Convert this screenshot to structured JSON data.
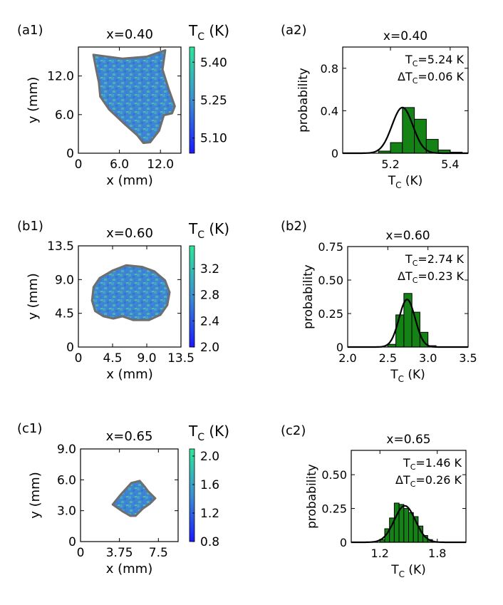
{
  "chart_data": [
    {
      "type": "heatmap",
      "panel_label": "(a1)",
      "title": "x=0.40",
      "xlabel": "x (mm)",
      "ylabel": "y (mm)",
      "x_ticks": [
        "0",
        "6.0",
        "12.0"
      ],
      "x_tick_values": [
        0,
        6,
        12
      ],
      "y_ticks": [
        "0",
        "6.0",
        "12.0"
      ],
      "y_tick_values": [
        0,
        6,
        12
      ],
      "xlim": [
        0,
        15
      ],
      "ylim": [
        0,
        16.5
      ],
      "colorbar": {
        "label_main": "T",
        "label_sub": "C",
        "label_unit": " (K)",
        "ticks": [
          "5.10",
          "5.25",
          "5.40"
        ],
        "tick_values": [
          5.1,
          5.25,
          5.4
        ],
        "range": [
          5.04,
          5.46
        ],
        "cmap_low": "#1a1aff",
        "cmap_mid": "#3c8fd2",
        "cmap_high": "#2ee69a"
      },
      "sample_outline_mm": [
        [
          2.2,
          15.3
        ],
        [
          6.5,
          14.7
        ],
        [
          10,
          15.0
        ],
        [
          12.7,
          16.0
        ],
        [
          12.3,
          13.0
        ],
        [
          13.2,
          10.0
        ],
        [
          14.1,
          7.3
        ],
        [
          13.7,
          6.2
        ],
        [
          12.5,
          5.9
        ],
        [
          11.8,
          3.5
        ],
        [
          10.5,
          1.7
        ],
        [
          9.5,
          1.6
        ],
        [
          8.6,
          2.8
        ],
        [
          6.5,
          4.8
        ],
        [
          4.5,
          6.8
        ],
        [
          3.2,
          8.8
        ],
        [
          3.0,
          11.0
        ],
        [
          2.6,
          13.0
        ]
      ]
    },
    {
      "type": "bar",
      "panel_label": "(a2)",
      "title": "x=0.40",
      "xlabel_main": "T",
      "xlabel_sub": "C",
      "xlabel_unit": " (K)",
      "ylabel": "probability",
      "x_ticks": [
        "5.2",
        "5.4"
      ],
      "x_tick_values": [
        5.2,
        5.4
      ],
      "y_ticks": [
        "0",
        "0.4",
        "0.8"
      ],
      "y_tick_values": [
        0,
        0.4,
        0.8
      ],
      "xlim": [
        5.04,
        5.46
      ],
      "ylim": [
        0,
        1.0
      ],
      "bar_color": "#148214",
      "bins": [
        [
          5.16,
          5.2,
          0.02
        ],
        [
          5.2,
          5.24,
          0.1
        ],
        [
          5.24,
          5.28,
          0.43
        ],
        [
          5.28,
          5.32,
          0.32
        ],
        [
          5.32,
          5.36,
          0.13
        ],
        [
          5.36,
          5.4,
          0.03
        ],
        [
          5.4,
          5.44,
          0.01
        ]
      ],
      "fit": {
        "mean": 5.24,
        "sigma": 0.035,
        "peak": 0.43
      },
      "annotation_tc": {
        "prefix": "T",
        "sub": "C",
        "text": "=5.24 K"
      },
      "annotation_dtc": {
        "prefix": "ΔT",
        "sub": "C",
        "text": "=0.06 K"
      }
    },
    {
      "type": "heatmap",
      "panel_label": "(b1)",
      "title": "x=0.60",
      "xlabel": "x (mm)",
      "ylabel": "y (mm)",
      "x_ticks": [
        "0",
        "4.5",
        "9.0",
        "13.5"
      ],
      "x_tick_values": [
        0,
        4.5,
        9,
        13.5
      ],
      "y_ticks": [
        "0",
        "4.5",
        "9.0",
        "13.5"
      ],
      "y_tick_values": [
        0,
        4.5,
        9,
        13.5
      ],
      "xlim": [
        0,
        13.5
      ],
      "ylim": [
        0,
        13.5
      ],
      "colorbar": {
        "label_main": "T",
        "label_sub": "C",
        "label_unit": " (K)",
        "ticks": [
          "2.0",
          "2.4",
          "2.8",
          "3.2"
        ],
        "tick_values": [
          2.0,
          2.4,
          2.8,
          3.2
        ],
        "range": [
          2.0,
          3.55
        ],
        "cmap_low": "#1a1aff",
        "cmap_mid": "#3c8fd2",
        "cmap_high": "#2ee69a"
      },
      "sample_outline_mm": [
        [
          1.8,
          6.2
        ],
        [
          2.0,
          8.0
        ],
        [
          2.8,
          9.2
        ],
        [
          4.5,
          10.2
        ],
        [
          6.3,
          10.9
        ],
        [
          8.4,
          10.7
        ],
        [
          10.0,
          10.1
        ],
        [
          11.4,
          8.9
        ],
        [
          12.0,
          7.3
        ],
        [
          11.7,
          5.6
        ],
        [
          10.8,
          4.3
        ],
        [
          9.3,
          3.6
        ],
        [
          7.2,
          3.6
        ],
        [
          5.8,
          4.1
        ],
        [
          4.6,
          3.8
        ],
        [
          3.3,
          4.1
        ],
        [
          2.2,
          4.8
        ]
      ]
    },
    {
      "type": "bar",
      "panel_label": "(b2)",
      "title": "x=0.60",
      "xlabel_main": "T",
      "xlabel_sub": "C",
      "xlabel_unit": " (K)",
      "ylabel": "probability",
      "x_ticks": [
        "2.0",
        "2.5",
        "3.0",
        "3.5"
      ],
      "x_tick_values": [
        2.0,
        2.5,
        3.0,
        3.5
      ],
      "y_ticks": [
        "0",
        "0.25",
        "0.50",
        "0.75"
      ],
      "y_tick_values": [
        0,
        0.25,
        0.5,
        0.75
      ],
      "xlim": [
        2.0,
        3.5
      ],
      "ylim": [
        0,
        0.75
      ],
      "bar_color": "#148214",
      "bins": [
        [
          2.5,
          2.6,
          0.02
        ],
        [
          2.6,
          2.7,
          0.24
        ],
        [
          2.7,
          2.8,
          0.4
        ],
        [
          2.8,
          2.9,
          0.26
        ],
        [
          2.9,
          3.0,
          0.11
        ],
        [
          3.0,
          3.1,
          0.01
        ]
      ],
      "fit": {
        "mean": 2.74,
        "sigma": 0.1,
        "peak": 0.355
      },
      "annotation_tc": {
        "prefix": "T",
        "sub": "C",
        "text": "=2.74 K"
      },
      "annotation_dtc": {
        "prefix": "ΔT",
        "sub": "C",
        "text": "=0.23 K"
      }
    },
    {
      "type": "heatmap",
      "panel_label": "(c1)",
      "title": "x=0.65",
      "xlabel": "x (mm)",
      "ylabel": "y (mm)",
      "x_ticks": [
        "0",
        "3.75",
        "7.5"
      ],
      "x_tick_values": [
        0,
        3.75,
        7.5
      ],
      "y_ticks": [
        "0",
        "3.0",
        "6.0",
        "9.0"
      ],
      "y_tick_values": [
        0,
        3,
        6,
        9
      ],
      "xlim": [
        0,
        9.4
      ],
      "ylim": [
        0,
        9.0
      ],
      "colorbar": {
        "label_main": "T",
        "label_sub": "C",
        "label_unit": " (K)",
        "ticks": [
          "0.8",
          "1.2",
          "1.6",
          "2.0"
        ],
        "tick_values": [
          0.8,
          1.2,
          1.6,
          2.0
        ],
        "range": [
          0.8,
          2.1
        ],
        "cmap_low": "#1a1aff",
        "cmap_mid": "#3c8fd2",
        "cmap_high": "#2ee69a"
      },
      "sample_outline_mm": [
        [
          3.1,
          3.6
        ],
        [
          3.9,
          4.6
        ],
        [
          4.9,
          5.7
        ],
        [
          5.7,
          5.9
        ],
        [
          6.2,
          5.3
        ],
        [
          6.5,
          4.9
        ],
        [
          7.2,
          4.2
        ],
        [
          6.7,
          3.7
        ],
        [
          6.0,
          3.2
        ],
        [
          5.3,
          2.5
        ],
        [
          4.8,
          2.5
        ],
        [
          4.1,
          2.9
        ]
      ]
    },
    {
      "type": "bar",
      "panel_label": "(c2)",
      "title": "x=0.65",
      "xlabel_main": "T",
      "xlabel_sub": "C",
      "xlabel_unit": " (K)",
      "ylabel": "probability",
      "x_ticks": [
        "1.2",
        "1.8"
      ],
      "x_tick_values": [
        1.2,
        1.8
      ],
      "y_ticks": [
        "0",
        "0.25",
        "0.50"
      ],
      "y_tick_values": [
        0,
        0.25,
        0.5
      ],
      "xlim": [
        0.9,
        2.1
      ],
      "ylim": [
        0,
        0.68
      ],
      "bar_color": "#148214",
      "bins": [
        [
          1.2,
          1.25,
          0.02
        ],
        [
          1.25,
          1.3,
          0.1
        ],
        [
          1.3,
          1.35,
          0.18
        ],
        [
          1.35,
          1.4,
          0.29
        ],
        [
          1.4,
          1.45,
          0.28
        ],
        [
          1.45,
          1.5,
          0.25
        ],
        [
          1.5,
          1.55,
          0.22
        ],
        [
          1.55,
          1.6,
          0.19
        ],
        [
          1.6,
          1.65,
          0.12
        ],
        [
          1.65,
          1.7,
          0.05
        ],
        [
          1.7,
          1.75,
          0.02
        ]
      ],
      "fit": {
        "mean": 1.46,
        "sigma": 0.11,
        "peak": 0.27
      },
      "annotation_tc": {
        "prefix": "T",
        "sub": "C",
        "text": "=1.46 K"
      },
      "annotation_dtc": {
        "prefix": "ΔT",
        "sub": "C",
        "text": "=0.26 K"
      }
    }
  ]
}
